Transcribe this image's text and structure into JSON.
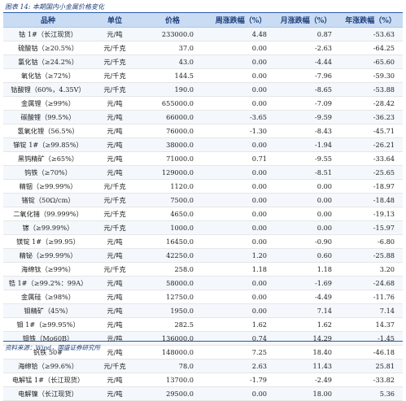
{
  "figure": {
    "title": "图表 14: 本期国内小金属价格变化"
  },
  "table": {
    "headers": [
      "品种",
      "单位",
      "价格",
      "周涨跌幅（%）",
      "月涨跌幅（%）",
      "年涨跌幅（%）"
    ],
    "rows": [
      [
        "钴 1#（长江现货）",
        "元/吨",
        "233000.0",
        "4.48",
        "0.87",
        "-53.63"
      ],
      [
        "硫酸钴（≥20.5%）",
        "元/千克",
        "37.0",
        "0.00",
        "-2.63",
        "-64.25"
      ],
      [
        "氯化钴（≥24.2%）",
        "元/千克",
        "43.0",
        "0.00",
        "-4.44",
        "-65.60"
      ],
      [
        "氧化钴（≥72%）",
        "元/千克",
        "144.5",
        "0.00",
        "-7.96",
        "-59.30"
      ],
      [
        "钴酸锂（60%，4.35V）",
        "元/千克",
        "190.0",
        "0.00",
        "-8.65",
        "-53.88"
      ],
      [
        "金属锂（≥99%）",
        "元/吨",
        "655000.0",
        "0.00",
        "-7.09",
        "-28.42"
      ],
      [
        "碳酸锂（99.5%）",
        "元/吨",
        "66000.0",
        "-3.65",
        "-9.59",
        "-36.23"
      ],
      [
        "氢氧化锂（56.5%）",
        "元/吨",
        "76000.0",
        "-1.30",
        "-8.43",
        "-45.71"
      ],
      [
        "锑锭 1#（≥99.85%）",
        "元/吨",
        "38000.0",
        "0.00",
        "-1.94",
        "-26.21"
      ],
      [
        "黑钨精矿（≥65%）",
        "元/吨",
        "71000.0",
        "0.71",
        "-9.55",
        "-33.64"
      ],
      [
        "钨铁（≥70%）",
        "元/吨",
        "129000.0",
        "0.00",
        "-8.51",
        "-25.65"
      ],
      [
        "精铟（≥99.99%）",
        "元/千克",
        "1120.0",
        "0.00",
        "0.00",
        "-18.97"
      ],
      [
        "锗锭（50Ω/cm）",
        "元/千克",
        "7500.0",
        "0.00",
        "0.00",
        "-18.48"
      ],
      [
        "二氧化锗（99.999%）",
        "元/千克",
        "4650.0",
        "0.00",
        "0.00",
        "-19.13"
      ],
      [
        "镓（≥99.99%）",
        "元/千克",
        "1000.0",
        "0.00",
        "0.00",
        "-15.97"
      ],
      [
        "镁锭 1#（≥99.95）",
        "元/吨",
        "16450.0",
        "0.00",
        "-0.90",
        "-6.80"
      ],
      [
        "精铋（≥99.99%）",
        "元/吨",
        "42250.0",
        "1.20",
        "0.60",
        "-25.88"
      ],
      [
        "海绵钛（≥99%）",
        "元/千克",
        "258.0",
        "1.18",
        "1.18",
        "3.20"
      ],
      [
        "锆 1#（≥99.2%：99A）",
        "元/吨",
        "58000.0",
        "0.00",
        "-1.69",
        "-24.68"
      ],
      [
        "金属硅（≥98%）",
        "元/吨",
        "12750.0",
        "0.00",
        "-4.49",
        "-11.76"
      ],
      [
        "钼精矿（45%）",
        "元/吨",
        "1950.0",
        "0.00",
        "7.14",
        "7.14"
      ],
      [
        "钼 1#（≥99.95%）",
        "元/吨",
        "282.5",
        "1.62",
        "1.62",
        "14.37"
      ],
      [
        "钼铁（Mo60B）",
        "元/吨",
        "136000.0",
        "0.74",
        "14.29",
        "-1.45"
      ],
      [
        "钒铁 50#",
        "元/吨",
        "148000.0",
        "7.25",
        "18.40",
        "-46.18"
      ],
      [
        "海绵铪（≥99.6%）",
        "元/千克",
        "78.0",
        "2.63",
        "11.43",
        "25.81"
      ],
      [
        "电解锰 1#（长江现货）",
        "元/吨",
        "13700.0",
        "-1.79",
        "-2.49",
        "-33.82"
      ],
      [
        "电解镍（长江现货）",
        "元/吨",
        "29500.0",
        "0.00",
        "18.00",
        "5.36"
      ]
    ]
  },
  "footer": {
    "source": "资料来源：Wind，国盛证券研究所"
  }
}
